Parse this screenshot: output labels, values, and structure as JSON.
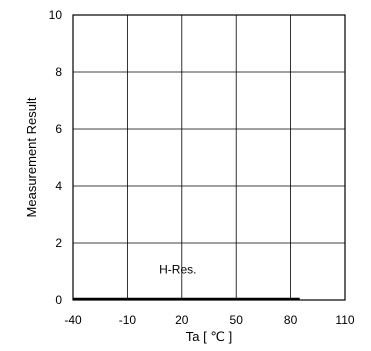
{
  "chart_data": {
    "type": "line",
    "title": "",
    "xlabel": "Ta [ ℃ ]",
    "ylabel": "Measurement Result",
    "xlim": [
      -40,
      110
    ],
    "ylim": [
      0,
      10
    ],
    "x_ticks": [
      -40,
      -10,
      20,
      50,
      80,
      110
    ],
    "y_ticks": [
      0,
      2,
      4,
      6,
      8,
      10
    ],
    "grid": true,
    "legend": "none",
    "annotations": [
      {
        "text": "H-Res.",
        "x": 20,
        "y": 1
      }
    ],
    "series": [
      {
        "x": [
          -40,
          -10,
          20,
          50,
          85
        ],
        "y": [
          0,
          0,
          0,
          0,
          0
        ]
      }
    ]
  },
  "colors": {
    "line": "#000000",
    "grid": "#000000"
  }
}
